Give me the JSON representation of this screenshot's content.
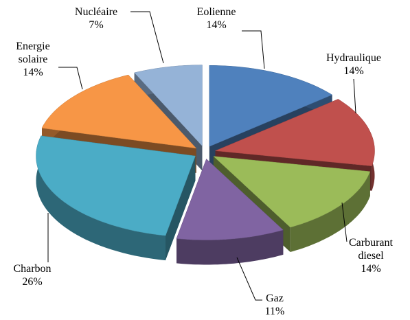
{
  "chart_data": {
    "type": "pie",
    "categories": [
      "Eolienne",
      "Hydraulique",
      "Carburant diesel",
      "Gaz",
      "Charbon",
      "Energie solaire",
      "Nucléaire"
    ],
    "values": [
      14,
      14,
      14,
      11,
      26,
      14,
      7
    ],
    "value_labels": [
      "14%",
      "14%",
      "14%",
      "11%",
      "26%",
      "14%",
      "7%"
    ],
    "colors": [
      "#4f81bd",
      "#c0504d",
      "#9bbb59",
      "#8064a2",
      "#4bacc6",
      "#f79646",
      "#95b3d7"
    ]
  }
}
